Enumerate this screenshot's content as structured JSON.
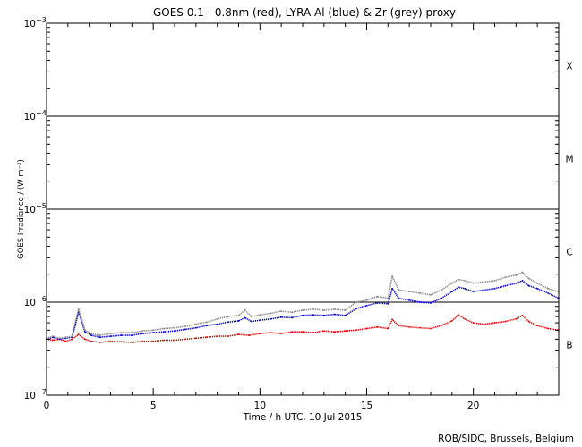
{
  "chart_data": {
    "type": "line",
    "title": "GOES 0.1—0.8nm (red), LYRA Al (blue) & Zr (grey) proxy",
    "xlabel": "Time / h UTC, 10 Jul 2015",
    "ylabel": "GOES Irradiance / (W m⁻²)",
    "xlim": [
      0,
      24
    ],
    "ylim": [
      1e-07,
      0.001
    ],
    "y_scale": "log",
    "grid": false,
    "x_ticks": [
      0,
      5,
      10,
      15,
      20
    ],
    "y_ticks": [
      {
        "value": 1e-07,
        "base": "10",
        "exp": "−7"
      },
      {
        "value": 1e-06,
        "base": "10",
        "exp": "−6"
      },
      {
        "value": 1e-05,
        "base": "10",
        "exp": "−5"
      },
      {
        "value": 0.0001,
        "base": "10",
        "exp": "−4"
      },
      {
        "value": 0.001,
        "base": "10",
        "exp": "−3"
      }
    ],
    "flare_class_lines": [
      1e-06,
      1e-05,
      0.0001
    ],
    "flare_classes": [
      {
        "label": "X",
        "center": 0.00035
      },
      {
        "label": "M",
        "center": 3.5e-05
      },
      {
        "label": "C",
        "center": 3.5e-06
      },
      {
        "label": "B",
        "center": 3.5e-07
      }
    ],
    "series": [
      {
        "name": "GOES 0.1—0.8nm",
        "color": "#e00000",
        "x": [
          0,
          0.3,
          0.6,
          0.9,
          1.2,
          1.5,
          1.8,
          2.1,
          2.5,
          3,
          3.5,
          4,
          4.5,
          5,
          5.5,
          6,
          6.5,
          7,
          7.5,
          8,
          8.5,
          9,
          9.5,
          10,
          10.5,
          11,
          11.5,
          12,
          12.5,
          13,
          13.5,
          14,
          14.5,
          15,
          15.5,
          16,
          16.2,
          16.5,
          17,
          17.5,
          18,
          18.5,
          19,
          19.3,
          19.6,
          20,
          20.5,
          21,
          21.5,
          22,
          22.3,
          22.6,
          23,
          23.5,
          24
        ],
        "y": [
          4e-07,
          3.9e-07,
          4e-07,
          3.8e-07,
          4e-07,
          4.5e-07,
          4e-07,
          3.8e-07,
          3.7e-07,
          3.8e-07,
          3.75e-07,
          3.7e-07,
          3.8e-07,
          3.8e-07,
          3.9e-07,
          3.9e-07,
          4e-07,
          4.1e-07,
          4.2e-07,
          4.3e-07,
          4.3e-07,
          4.5e-07,
          4.4e-07,
          4.6e-07,
          4.7e-07,
          4.6e-07,
          4.8e-07,
          4.8e-07,
          4.7e-07,
          4.9e-07,
          4.8e-07,
          4.9e-07,
          5e-07,
          5.2e-07,
          5.4e-07,
          5.2e-07,
          6.5e-07,
          5.6e-07,
          5.4e-07,
          5.3e-07,
          5.2e-07,
          5.6e-07,
          6.3e-07,
          7.3e-07,
          6.6e-07,
          6e-07,
          5.8e-07,
          6e-07,
          6.2e-07,
          6.6e-07,
          7.2e-07,
          6.2e-07,
          5.6e-07,
          5.2e-07,
          5e-07
        ]
      },
      {
        "name": "LYRA Al",
        "color": "#0000cc",
        "x": [
          0,
          0.3,
          0.6,
          0.9,
          1.2,
          1.5,
          1.8,
          2.1,
          2.5,
          3,
          3.5,
          4,
          4.5,
          5,
          5.5,
          6,
          6.5,
          7,
          7.5,
          8,
          8.5,
          9,
          9.3,
          9.6,
          10,
          10.5,
          11,
          11.5,
          12,
          12.5,
          13,
          13.5,
          14,
          14.5,
          15,
          15.5,
          16,
          16.2,
          16.5,
          17,
          17.5,
          18,
          18.5,
          19,
          19.3,
          19.6,
          20,
          20.5,
          21,
          21.5,
          22,
          22.3,
          22.6,
          23,
          23.5,
          24
        ],
        "y": [
          4e-07,
          4.2e-07,
          4e-07,
          4.1e-07,
          4.2e-07,
          7.8e-07,
          4.8e-07,
          4.4e-07,
          4.2e-07,
          4.3e-07,
          4.4e-07,
          4.4e-07,
          4.6e-07,
          4.7e-07,
          4.8e-07,
          4.9e-07,
          5.1e-07,
          5.3e-07,
          5.6e-07,
          5.8e-07,
          6.1e-07,
          6.3e-07,
          6.8e-07,
          6.2e-07,
          6.4e-07,
          6.6e-07,
          6.9e-07,
          6.8e-07,
          7.2e-07,
          7.3e-07,
          7.2e-07,
          7.4e-07,
          7.2e-07,
          8.5e-07,
          9.2e-07,
          9.8e-07,
          9.6e-07,
          1.4e-06,
          1.1e-06,
          1.05e-06,
          1e-06,
          9.8e-07,
          1.1e-06,
          1.3e-06,
          1.45e-06,
          1.4e-06,
          1.3e-06,
          1.35e-06,
          1.4e-06,
          1.5e-06,
          1.6e-06,
          1.7e-06,
          1.5e-06,
          1.4e-06,
          1.25e-06,
          1.1e-06
        ]
      },
      {
        "name": "Zr",
        "color": "#888888",
        "x": [
          0,
          0.3,
          0.6,
          0.9,
          1.2,
          1.5,
          1.8,
          2.1,
          2.5,
          3,
          3.5,
          4,
          4.5,
          5,
          5.5,
          6,
          6.5,
          7,
          7.5,
          8,
          8.5,
          9,
          9.3,
          9.6,
          10,
          10.5,
          11,
          11.5,
          12,
          12.5,
          13,
          13.5,
          14,
          14.5,
          15,
          15.5,
          16,
          16.2,
          16.5,
          17,
          17.5,
          18,
          18.5,
          19,
          19.3,
          19.6,
          20,
          20.5,
          21,
          21.5,
          22,
          22.3,
          22.6,
          23,
          23.5,
          24
        ],
        "y": [
          4.1e-07,
          4.3e-07,
          4.1e-07,
          4.2e-07,
          4.3e-07,
          8.5e-07,
          5e-07,
          4.6e-07,
          4.4e-07,
          4.6e-07,
          4.7e-07,
          4.7e-07,
          4.9e-07,
          5e-07,
          5.2e-07,
          5.3e-07,
          5.5e-07,
          5.8e-07,
          6.1e-07,
          6.6e-07,
          7e-07,
          7.2e-07,
          8.2e-07,
          7e-07,
          7.3e-07,
          7.6e-07,
          8e-07,
          7.8e-07,
          8.2e-07,
          8.4e-07,
          8.2e-07,
          8.4e-07,
          8.2e-07,
          1e-06,
          1.05e-06,
          1.15e-06,
          1.1e-06,
          1.9e-06,
          1.35e-06,
          1.3e-06,
          1.25e-06,
          1.2e-06,
          1.35e-06,
          1.6e-06,
          1.75e-06,
          1.7e-06,
          1.6e-06,
          1.65e-06,
          1.7e-06,
          1.85e-06,
          1.95e-06,
          2.1e-06,
          1.8e-06,
          1.6e-06,
          1.4e-06,
          1.3e-06
        ]
      }
    ]
  },
  "footer": {
    "credit": "ROB/SIDC, Brussels, Belgium"
  }
}
